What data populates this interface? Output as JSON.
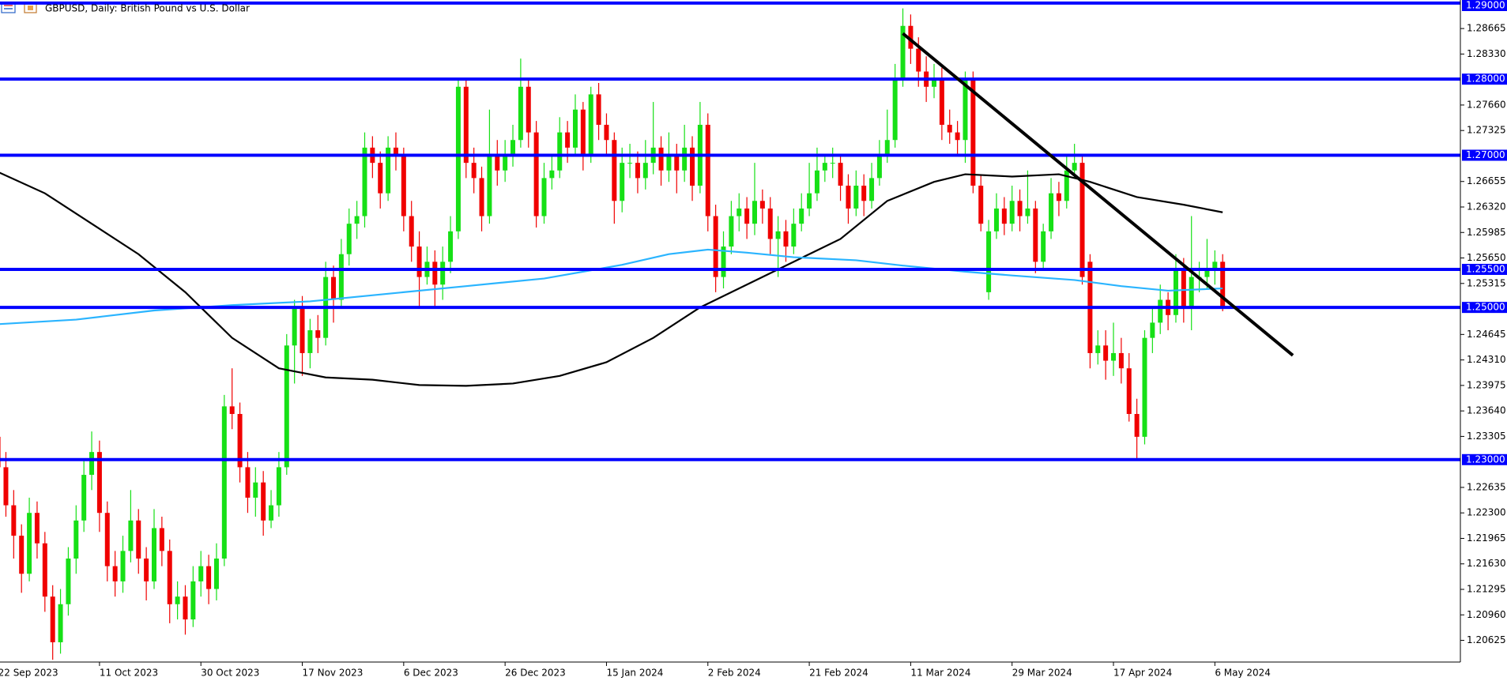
{
  "chart_data": {
    "type": "candlestick",
    "title": "GBPUSD, Daily:  British Pound vs U.S. Dollar",
    "categories": [
      "22 Sep 2023",
      null,
      null,
      null,
      null,
      null,
      null,
      null,
      null,
      null,
      null,
      null,
      null,
      "11 Oct 2023",
      null,
      null,
      null,
      null,
      null,
      null,
      null,
      null,
      null,
      null,
      null,
      null,
      "30 Oct 2023",
      null,
      null,
      null,
      null,
      null,
      null,
      null,
      null,
      null,
      null,
      null,
      null,
      "17 Nov 2023",
      null,
      null,
      null,
      null,
      null,
      null,
      null,
      null,
      null,
      null,
      null,
      null,
      "6 Dec 2023",
      null,
      null,
      null,
      null,
      null,
      null,
      null,
      null,
      null,
      null,
      null,
      null,
      "26 Dec 2023",
      null,
      null,
      null,
      null,
      null,
      null,
      null,
      null,
      null,
      null,
      null,
      null,
      "15 Jan 2024",
      null,
      null,
      null,
      null,
      null,
      null,
      null,
      null,
      null,
      null,
      null,
      null,
      "2 Feb 2024",
      null,
      null,
      null,
      null,
      null,
      null,
      null,
      null,
      null,
      null,
      null,
      null,
      "21 Feb 2024",
      null,
      null,
      null,
      null,
      null,
      null,
      null,
      null,
      null,
      null,
      null,
      null,
      "11 Mar 2024",
      null,
      null,
      null,
      null,
      null,
      null,
      null,
      null,
      null,
      null,
      null,
      null,
      "29 Mar 2024",
      null,
      null,
      null,
      null,
      null,
      null,
      null,
      null,
      null,
      null,
      null,
      null,
      "17 Apr 2024",
      null,
      null,
      null,
      null,
      null,
      null,
      null,
      null,
      null,
      null,
      null,
      null,
      "6 May 2024",
      null
    ],
    "ohlc": [
      [
        1.233,
        1.235,
        1.227,
        1.229
      ],
      [
        1.229,
        1.231,
        1.2225,
        1.224
      ],
      [
        1.224,
        1.226,
        1.217,
        1.22
      ],
      [
        1.22,
        1.2215,
        1.2125,
        1.215
      ],
      [
        1.215,
        1.225,
        1.214,
        1.223
      ],
      [
        1.223,
        1.2245,
        1.217,
        1.219
      ],
      [
        1.219,
        1.2205,
        1.21,
        1.212
      ],
      [
        1.212,
        1.2135,
        1.2037,
        1.206
      ],
      [
        1.206,
        1.213,
        1.2045,
        1.211
      ],
      [
        1.211,
        1.2185,
        1.2095,
        1.217
      ],
      [
        1.217,
        1.224,
        1.215,
        1.222
      ],
      [
        1.222,
        1.23,
        1.2205,
        1.228
      ],
      [
        1.228,
        1.2337,
        1.226,
        1.231
      ],
      [
        1.231,
        1.2325,
        1.2205,
        1.223
      ],
      [
        1.223,
        1.2245,
        1.214,
        1.216
      ],
      [
        1.216,
        1.218,
        1.212,
        1.214
      ],
      [
        1.214,
        1.22,
        1.2125,
        1.218
      ],
      [
        1.218,
        1.226,
        1.2165,
        1.222
      ],
      [
        1.222,
        1.2235,
        1.215,
        1.217
      ],
      [
        1.217,
        1.2185,
        1.2115,
        1.214
      ],
      [
        1.214,
        1.2235,
        1.213,
        1.221
      ],
      [
        1.221,
        1.2225,
        1.216,
        1.218
      ],
      [
        1.218,
        1.2195,
        1.2085,
        1.211
      ],
      [
        1.211,
        1.214,
        1.209,
        1.212
      ],
      [
        1.212,
        1.2135,
        1.207,
        1.209
      ],
      [
        1.209,
        1.216,
        1.208,
        1.214
      ],
      [
        1.214,
        1.218,
        1.212,
        1.216
      ],
      [
        1.216,
        1.2175,
        1.211,
        1.213
      ],
      [
        1.213,
        1.219,
        1.2115,
        1.217
      ],
      [
        1.217,
        1.2385,
        1.216,
        1.237
      ],
      [
        1.237,
        1.242,
        1.234,
        1.236
      ],
      [
        1.236,
        1.2375,
        1.227,
        1.229
      ],
      [
        1.229,
        1.231,
        1.223,
        1.225
      ],
      [
        1.225,
        1.229,
        1.2225,
        1.227
      ],
      [
        1.227,
        1.2285,
        1.22,
        1.222
      ],
      [
        1.222,
        1.226,
        1.221,
        1.224
      ],
      [
        1.224,
        1.231,
        1.2225,
        1.229
      ],
      [
        1.229,
        1.2465,
        1.228,
        1.245
      ],
      [
        1.245,
        1.251,
        1.24,
        1.25
      ],
      [
        1.25,
        1.2515,
        1.241,
        1.244
      ],
      [
        1.244,
        1.2485,
        1.242,
        1.247
      ],
      [
        1.247,
        1.249,
        1.244,
        1.246
      ],
      [
        1.246,
        1.256,
        1.245,
        1.254
      ],
      [
        1.254,
        1.2555,
        1.248,
        1.251
      ],
      [
        1.251,
        1.259,
        1.25,
        1.257
      ],
      [
        1.257,
        1.263,
        1.2555,
        1.261
      ],
      [
        1.261,
        1.264,
        1.259,
        1.262
      ],
      [
        1.262,
        1.273,
        1.2605,
        1.271
      ],
      [
        1.271,
        1.2725,
        1.267,
        1.269
      ],
      [
        1.269,
        1.2705,
        1.263,
        1.265
      ],
      [
        1.265,
        1.2725,
        1.264,
        1.271
      ],
      [
        1.271,
        1.273,
        1.268,
        1.27
      ],
      [
        1.27,
        1.271,
        1.26,
        1.262
      ],
      [
        1.262,
        1.264,
        1.256,
        1.258
      ],
      [
        1.258,
        1.26,
        1.25,
        1.254
      ],
      [
        1.254,
        1.258,
        1.253,
        1.256
      ],
      [
        1.256,
        1.2575,
        1.25,
        1.253
      ],
      [
        1.253,
        1.258,
        1.251,
        1.256
      ],
      [
        1.256,
        1.262,
        1.2545,
        1.26
      ],
      [
        1.26,
        1.28,
        1.259,
        1.279
      ],
      [
        1.279,
        1.28,
        1.267,
        1.269
      ],
      [
        1.269,
        1.271,
        1.265,
        1.267
      ],
      [
        1.267,
        1.2685,
        1.26,
        1.262
      ],
      [
        1.262,
        1.276,
        1.261,
        1.27
      ],
      [
        1.27,
        1.272,
        1.266,
        1.268
      ],
      [
        1.268,
        1.272,
        1.2665,
        1.27
      ],
      [
        1.27,
        1.274,
        1.2685,
        1.272
      ],
      [
        1.272,
        1.2827,
        1.271,
        1.279
      ],
      [
        1.279,
        1.28,
        1.271,
        1.273
      ],
      [
        1.273,
        1.2745,
        1.2605,
        1.262
      ],
      [
        1.262,
        1.269,
        1.261,
        1.267
      ],
      [
        1.267,
        1.27,
        1.2655,
        1.268
      ],
      [
        1.268,
        1.275,
        1.267,
        1.273
      ],
      [
        1.273,
        1.2745,
        1.269,
        1.271
      ],
      [
        1.271,
        1.278,
        1.27,
        1.276
      ],
      [
        1.276,
        1.277,
        1.268,
        1.27
      ],
      [
        1.27,
        1.279,
        1.269,
        1.278
      ],
      [
        1.278,
        1.2795,
        1.272,
        1.274
      ],
      [
        1.274,
        1.2755,
        1.27,
        1.272
      ],
      [
        1.272,
        1.273,
        1.261,
        1.264
      ],
      [
        1.264,
        1.271,
        1.2625,
        1.269
      ],
      [
        1.269,
        1.2715,
        1.267,
        1.269
      ],
      [
        1.269,
        1.2705,
        1.265,
        1.267
      ],
      [
        1.267,
        1.272,
        1.2655,
        1.269
      ],
      [
        1.269,
        1.277,
        1.2675,
        1.271
      ],
      [
        1.271,
        1.2725,
        1.266,
        1.268
      ],
      [
        1.268,
        1.273,
        1.2665,
        1.27
      ],
      [
        1.27,
        1.2715,
        1.265,
        1.268
      ],
      [
        1.268,
        1.274,
        1.2665,
        1.271
      ],
      [
        1.271,
        1.2725,
        1.264,
        1.266
      ],
      [
        1.266,
        1.277,
        1.265,
        1.274
      ],
      [
        1.274,
        1.2755,
        1.26,
        1.262
      ],
      [
        1.262,
        1.2635,
        1.252,
        1.254
      ],
      [
        1.254,
        1.26,
        1.2525,
        1.258
      ],
      [
        1.258,
        1.264,
        1.257,
        1.262
      ],
      [
        1.262,
        1.265,
        1.26,
        1.263
      ],
      [
        1.263,
        1.2645,
        1.259,
        1.261
      ],
      [
        1.261,
        1.269,
        1.2595,
        1.264
      ],
      [
        1.264,
        1.2655,
        1.261,
        1.263
      ],
      [
        1.263,
        1.2645,
        1.257,
        1.259
      ],
      [
        1.259,
        1.262,
        1.254,
        1.26
      ],
      [
        1.26,
        1.2615,
        1.256,
        1.258
      ],
      [
        1.258,
        1.263,
        1.257,
        1.261
      ],
      [
        1.261,
        1.265,
        1.26,
        1.263
      ],
      [
        1.263,
        1.269,
        1.262,
        1.265
      ],
      [
        1.265,
        1.271,
        1.264,
        1.268
      ],
      [
        1.268,
        1.27,
        1.2665,
        1.269
      ],
      [
        1.269,
        1.271,
        1.267,
        1.269
      ],
      [
        1.269,
        1.27,
        1.264,
        1.266
      ],
      [
        1.266,
        1.2675,
        1.261,
        1.263
      ],
      [
        1.263,
        1.268,
        1.262,
        1.266
      ],
      [
        1.266,
        1.2675,
        1.262,
        1.264
      ],
      [
        1.264,
        1.269,
        1.263,
        1.267
      ],
      [
        1.267,
        1.272,
        1.266,
        1.27
      ],
      [
        1.27,
        1.276,
        1.269,
        1.272
      ],
      [
        1.272,
        1.282,
        1.271,
        1.28
      ],
      [
        1.28,
        1.2893,
        1.279,
        1.287
      ],
      [
        1.287,
        1.2885,
        1.282,
        1.284
      ],
      [
        1.284,
        1.2855,
        1.279,
        1.281
      ],
      [
        1.281,
        1.283,
        1.277,
        1.279
      ],
      [
        1.279,
        1.282,
        1.2775,
        1.28
      ],
      [
        1.28,
        1.2815,
        1.272,
        1.274
      ],
      [
        1.274,
        1.276,
        1.2715,
        1.273
      ],
      [
        1.273,
        1.2745,
        1.27,
        1.272
      ],
      [
        1.272,
        1.281,
        1.269,
        1.28
      ],
      [
        1.28,
        1.281,
        1.265,
        1.266
      ],
      [
        1.266,
        1.2675,
        1.26,
        1.261
      ],
      [
        1.252,
        1.2615,
        1.251,
        1.26
      ],
      [
        1.26,
        1.265,
        1.259,
        1.263
      ],
      [
        1.263,
        1.2645,
        1.2595,
        1.261
      ],
      [
        1.261,
        1.266,
        1.26,
        1.264
      ],
      [
        1.264,
        1.2655,
        1.26,
        1.262
      ],
      [
        1.262,
        1.268,
        1.261,
        1.263
      ],
      [
        1.263,
        1.264,
        1.2545,
        1.256
      ],
      [
        1.256,
        1.261,
        1.255,
        1.26
      ],
      [
        1.26,
        1.267,
        1.259,
        1.265
      ],
      [
        1.265,
        1.2665,
        1.262,
        1.264
      ],
      [
        1.264,
        1.27,
        1.263,
        1.268
      ],
      [
        1.268,
        1.2715,
        1.267,
        1.269
      ],
      [
        1.269,
        1.27,
        1.253,
        1.254
      ],
      [
        1.256,
        1.257,
        1.242,
        1.244
      ],
      [
        1.244,
        1.247,
        1.2425,
        1.245
      ],
      [
        1.245,
        1.247,
        1.2405,
        1.243
      ],
      [
        1.243,
        1.248,
        1.241,
        1.244
      ],
      [
        1.244,
        1.246,
        1.24,
        1.242
      ],
      [
        1.242,
        1.244,
        1.235,
        1.236
      ],
      [
        1.236,
        1.238,
        1.23,
        1.233
      ],
      [
        1.233,
        1.247,
        1.232,
        1.246
      ],
      [
        1.246,
        1.25,
        1.244,
        1.248
      ],
      [
        1.248,
        1.253,
        1.2465,
        1.251
      ],
      [
        1.251,
        1.252,
        1.247,
        1.249
      ],
      [
        1.249,
        1.257,
        1.248,
        1.255
      ],
      [
        1.255,
        1.2565,
        1.248,
        1.25
      ],
      [
        1.25,
        1.262,
        1.247,
        1.254
      ],
      [
        1.254,
        1.256,
        1.252,
        1.254
      ],
      [
        1.254,
        1.259,
        1.2525,
        1.255
      ],
      [
        1.255,
        1.2575,
        1.253,
        1.256
      ],
      [
        1.256,
        1.257,
        1.2495,
        1.25
      ]
    ],
    "up_color": "#16e016",
    "down_color": "#f00000",
    "ylim": [
      1.2034,
      1.2904
    ],
    "yticks": [
      1.28665,
      {
        "value": 1.2833,
        "label": "1.28330"
      },
      {
        "value": 1.2766,
        "label": "1.27660"
      },
      1.27325,
      1.26655,
      {
        "value": 1.2632,
        "label": "1.26320"
      },
      1.25985,
      {
        "value": 1.2565,
        "label": "1.25650"
      },
      1.25315,
      1.24645,
      {
        "value": 1.2431,
        "label": "1.24310"
      },
      1.23975,
      {
        "value": 1.2364,
        "label": "1.23640"
      },
      1.23305,
      1.22635,
      {
        "value": 1.223,
        "label": "1.22300"
      },
      1.21965,
      {
        "value": 1.2163,
        "label": "1.21630"
      },
      1.21295,
      {
        "value": 1.2096,
        "label": "1.20960"
      },
      1.20625
    ],
    "levels": {
      "color": "#0000ff",
      "values": [
        {
          "value": 1.29,
          "label": "1.29000"
        },
        {
          "value": 1.28,
          "label": "1.28000"
        },
        {
          "value": 1.27,
          "label": "1.27000"
        },
        {
          "value": 1.255,
          "label": "1.25500"
        },
        {
          "value": 1.25,
          "label": "1.25000"
        },
        {
          "value": 1.23,
          "label": "1.23000"
        }
      ]
    },
    "lines": [
      {
        "color": "#000000",
        "x": [
          0,
          6,
          12,
          18,
          24,
          30,
          36,
          42,
          48,
          54,
          60,
          66,
          72,
          78,
          84,
          90,
          96,
          102,
          108,
          114,
          120,
          124,
          130,
          136,
          140,
          146,
          152,
          157
        ],
        "values": [
          1.2678,
          1.265,
          1.261,
          1.257,
          1.252,
          1.246,
          1.242,
          1.2408,
          1.2405,
          1.2398,
          1.2397,
          1.24,
          1.241,
          1.2428,
          1.246,
          1.25,
          1.253,
          1.256,
          1.259,
          1.264,
          1.2665,
          1.2675,
          1.2672,
          1.2675,
          1.2665,
          1.2645,
          1.2635,
          1.2625
        ]
      },
      {
        "color": "#2ab4ff",
        "x": [
          0,
          10,
          20,
          30,
          40,
          50,
          60,
          70,
          80,
          86,
          91,
          96,
          102,
          110,
          116,
          124,
          130,
          138,
          144,
          150,
          157
        ],
        "values": [
          1.2478,
          1.2484,
          1.2496,
          1.2503,
          1.2508,
          1.2518,
          1.2528,
          1.2538,
          1.2556,
          1.257,
          1.2576,
          1.2572,
          1.2566,
          1.2562,
          1.2555,
          1.2547,
          1.2542,
          1.2536,
          1.2528,
          1.2522,
          1.2525
        ]
      }
    ],
    "trendline": {
      "color": "#000000",
      "x": [
        116,
        166
      ],
      "values": [
        1.286,
        1.2437
      ]
    }
  }
}
